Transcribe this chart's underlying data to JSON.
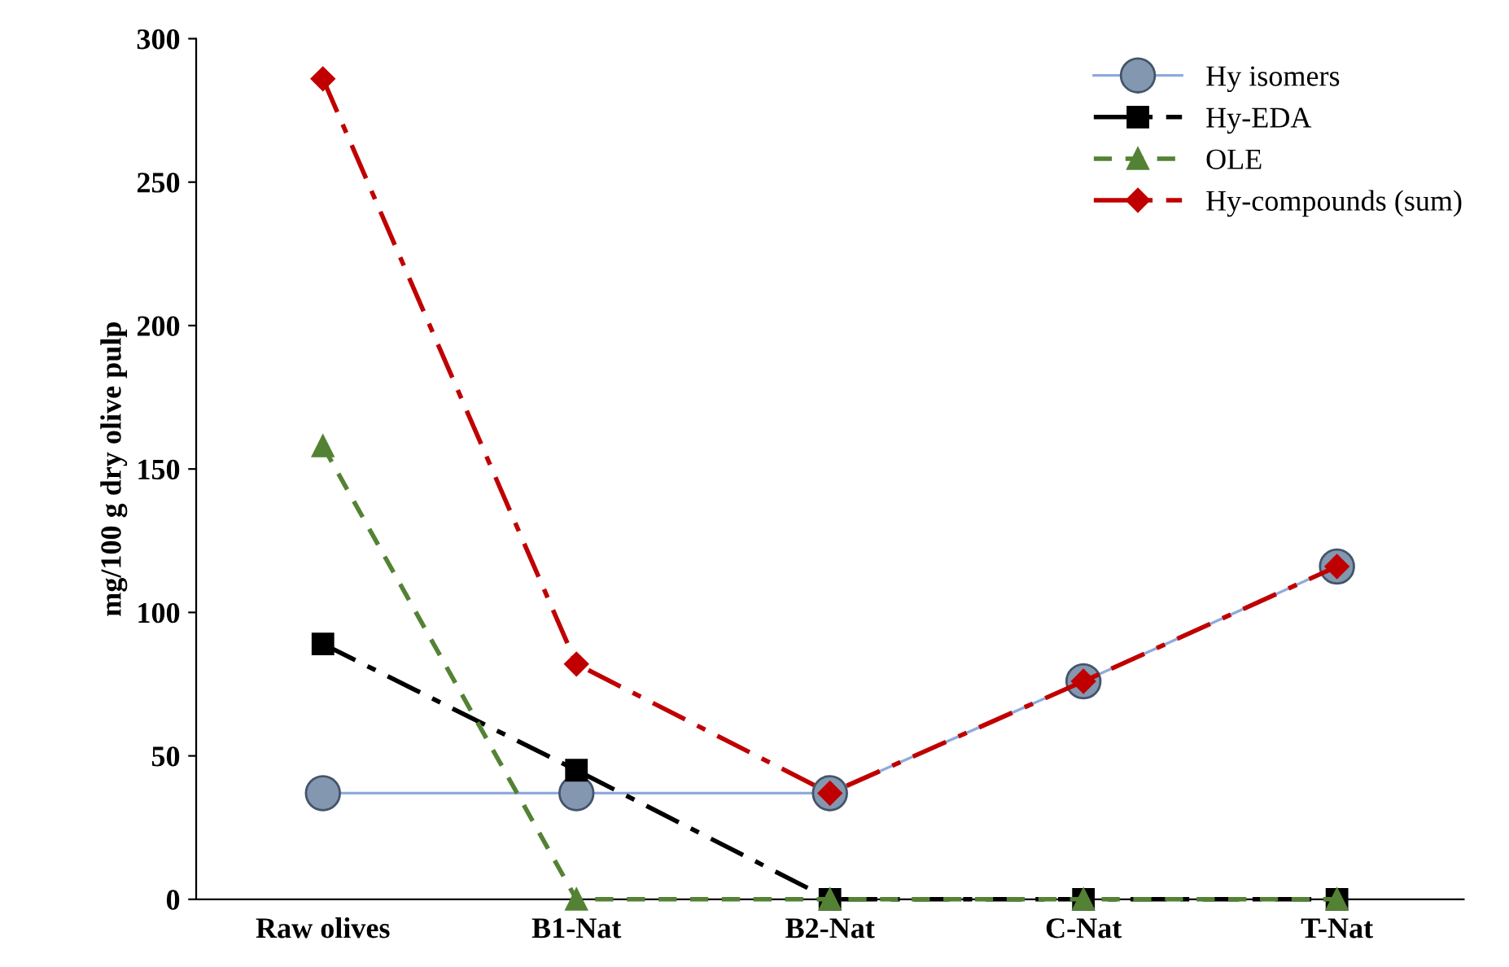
{
  "chart_data": {
    "type": "line",
    "ylabel": "mg/100 g dry olive pulp",
    "categories": [
      "Raw olives",
      "B1-Nat",
      "B2-Nat",
      "C-Nat",
      "T-Nat"
    ],
    "ylim": [
      0,
      300
    ],
    "yticks": [
      0,
      50,
      100,
      150,
      200,
      250,
      300
    ],
    "legend": "top right",
    "grid": false,
    "series": [
      {
        "name": "Hy isomers",
        "color": "#8faadc",
        "marker": "circle",
        "line_style": "solid",
        "values": [
          37,
          37,
          37,
          76,
          116
        ]
      },
      {
        "name": "Hy-EDA",
        "color": "#000000",
        "marker": "square",
        "line_style": "dashdot",
        "values": [
          89,
          45,
          0,
          0,
          0
        ]
      },
      {
        "name": "OLE",
        "color": "#548235",
        "marker": "triangle",
        "line_style": "dashed",
        "values": [
          158,
          0,
          0,
          0,
          0
        ]
      },
      {
        "name": "Hy-compounds (sum)",
        "color": "#c00000",
        "marker": "diamond",
        "line_style": "dashdot",
        "values": [
          286,
          82,
          37,
          76,
          116
        ]
      }
    ]
  }
}
